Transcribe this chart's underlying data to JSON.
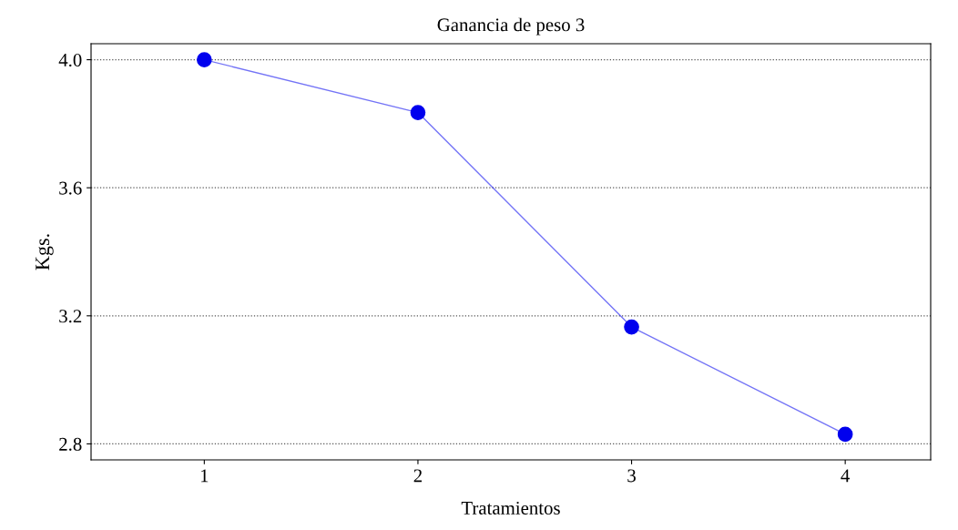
{
  "chart_data": {
    "type": "line",
    "title": "Ganancia de peso 3",
    "xlabel": "Tratamientos",
    "ylabel": "Kgs.",
    "categories": [
      "1",
      "2",
      "3",
      "4"
    ],
    "series": [
      {
        "color": "#0000ee",
        "values": [
          4.0,
          3.835,
          3.165,
          2.83
        ]
      }
    ],
    "ylim": [
      2.75,
      4.05
    ],
    "yticks": [
      {
        "value": 2.8,
        "label": "2.8"
      },
      {
        "value": 3.2,
        "label": "3.2"
      },
      {
        "value": 3.6,
        "label": "3.6"
      },
      {
        "value": 4.0,
        "label": "4.0"
      }
    ],
    "grid": "y",
    "marker": "circle",
    "line_style": "solid",
    "legend": false
  }
}
